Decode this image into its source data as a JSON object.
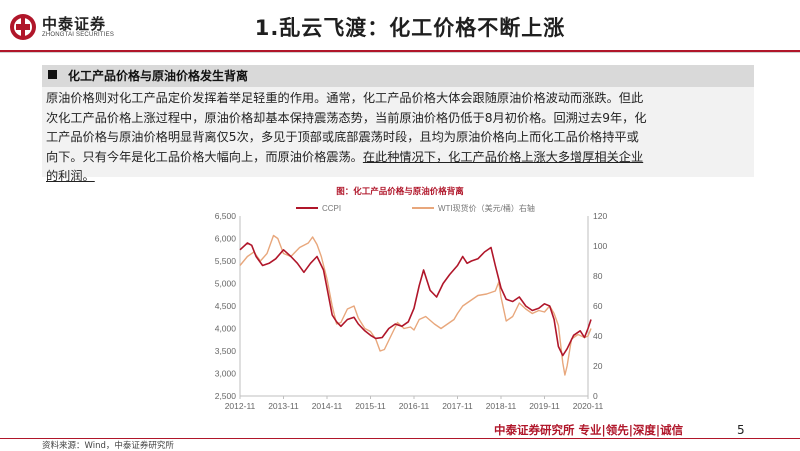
{
  "header": {
    "logo_cn": "中泰证券",
    "logo_en": "ZHONGTAI SECURITIES",
    "title": "1.乱云飞渡：化工价格不断上涨"
  },
  "section": {
    "title": "化工产品价格与原油价格发生背离",
    "body_lines": [
      "原油价格则对化工产品定价发挥着举足轻重的作用。通常，化工产品价格大体会跟随原油价格波动而涨跌。但此",
      "次化工产品价格上涨过程中，原油价格却基本保持震荡态势，当前原油价格仍低于8月初价格。回溯过去9年，化",
      "工产品价格与原油价格明显背离仅5次，多见于顶部或底部震荡时段，且均为原油价格向上而化工品价格持平或",
      "向下。只有今年是化工品价格大幅向上，而原油价格震荡。"
    ],
    "body_underlined": "在此种情况下，化工产品价格上涨大多增厚相关企业",
    "body_last_line": "的利润。"
  },
  "chart_data": {
    "type": "line",
    "title": "图：化工产品价格与原油价格背离",
    "x_ticks": [
      "2012-11",
      "2013-11",
      "2014-11",
      "2015-11",
      "2016-11",
      "2017-11",
      "2018-11",
      "2019-11",
      "2020-11"
    ],
    "y_left": {
      "ticks": [
        "2,500",
        "3,000",
        "3,500",
        "4,000",
        "4,500",
        "5,000",
        "5,500",
        "6,000",
        "6,500"
      ],
      "range": [
        2500,
        6500
      ]
    },
    "y_right": {
      "ticks": [
        "0",
        "20",
        "40",
        "60",
        "80",
        "100",
        "120"
      ],
      "range": [
        0,
        120
      ]
    },
    "series": [
      {
        "name": "CCPI",
        "axis": "left",
        "color": "#b0162a",
        "x": [
          2012.83,
          2013.0,
          2013.1,
          2013.2,
          2013.35,
          2013.5,
          2013.65,
          2013.83,
          2014.0,
          2014.15,
          2014.3,
          2014.45,
          2014.6,
          2014.75,
          2014.83,
          2014.95,
          2015.05,
          2015.15,
          2015.3,
          2015.45,
          2015.55,
          2015.7,
          2015.83,
          2015.95,
          2016.1,
          2016.25,
          2016.4,
          2016.55,
          2016.7,
          2016.83,
          2016.95,
          2017.05,
          2017.2,
          2017.35,
          2017.5,
          2017.65,
          2017.83,
          2017.95,
          2018.05,
          2018.15,
          2018.3,
          2018.45,
          2018.6,
          2018.7,
          2018.83,
          2018.95,
          2019.1,
          2019.25,
          2019.4,
          2019.55,
          2019.7,
          2019.83,
          2019.95,
          2020.05,
          2020.15,
          2020.25,
          2020.35,
          2020.5,
          2020.65,
          2020.75,
          2020.83,
          2020.9
        ],
        "y": [
          5750,
          5900,
          5850,
          5600,
          5400,
          5450,
          5550,
          5750,
          5600,
          5450,
          5250,
          5450,
          5600,
          5300,
          4900,
          4300,
          4150,
          4050,
          4200,
          4250,
          4100,
          3950,
          3850,
          3780,
          3800,
          4000,
          4100,
          4050,
          4150,
          4450,
          4950,
          5300,
          4850,
          4700,
          5000,
          5200,
          5400,
          5600,
          5450,
          5500,
          5550,
          5700,
          5800,
          5400,
          4900,
          4650,
          4600,
          4700,
          4500,
          4400,
          4450,
          4550,
          4500,
          4200,
          3600,
          3400,
          3550,
          3850,
          3950,
          3800,
          4000,
          4200
        ]
      },
      {
        "name": "WTI现货价（美元/桶）右轴",
        "axis": "right",
        "color": "#e8a77c",
        "x": [
          2012.83,
          2013.0,
          2013.15,
          2013.3,
          2013.45,
          2013.6,
          2013.7,
          2013.83,
          2014.0,
          2014.2,
          2014.4,
          2014.5,
          2014.6,
          2014.7,
          2014.83,
          2014.95,
          2015.05,
          2015.15,
          2015.3,
          2015.45,
          2015.55,
          2015.7,
          2015.83,
          2015.95,
          2016.05,
          2016.15,
          2016.3,
          2016.45,
          2016.6,
          2016.75,
          2016.83,
          2016.95,
          2017.1,
          2017.3,
          2017.45,
          2017.6,
          2017.75,
          2017.83,
          2017.95,
          2018.1,
          2018.3,
          2018.5,
          2018.7,
          2018.78,
          2018.83,
          2018.95,
          2019.1,
          2019.25,
          2019.4,
          2019.55,
          2019.7,
          2019.83,
          2019.95,
          2020.05,
          2020.15,
          2020.25,
          2020.3,
          2020.35,
          2020.45,
          2020.6,
          2020.75,
          2020.83,
          2020.9
        ],
        "y": [
          87,
          93,
          96,
          90,
          95,
          107,
          105,
          95,
          93,
          99,
          102,
          106,
          101,
          93,
          78,
          60,
          48,
          49,
          58,
          60,
          52,
          45,
          43,
          38,
          30,
          31,
          40,
          49,
          45,
          46,
          44,
          51,
          53,
          48,
          45,
          48,
          51,
          55,
          60,
          63,
          67,
          68,
          70,
          76,
          66,
          50,
          53,
          62,
          58,
          55,
          57,
          56,
          60,
          55,
          47,
          22,
          14,
          20,
          38,
          41,
          39,
          40,
          45
        ]
      }
    ]
  },
  "footer": {
    "brand": "中泰证券研究所 专业|领先|深度|诚信",
    "page": "5",
    "source": "资料来源：Wind，中泰证券研究所"
  }
}
